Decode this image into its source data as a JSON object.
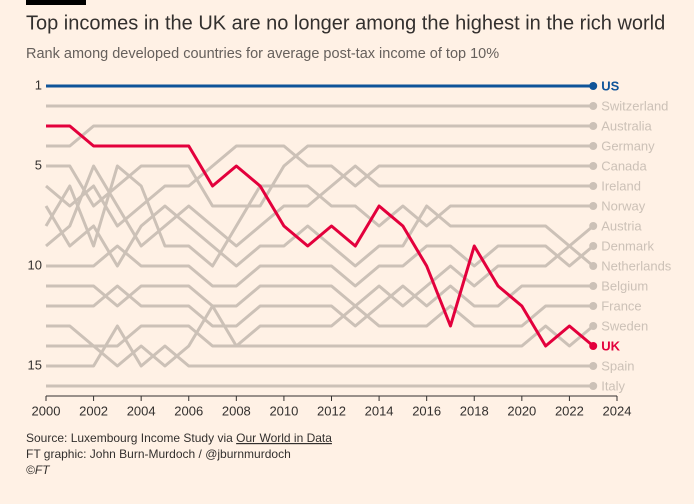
{
  "chart_data": {
    "type": "line",
    "title": "Top incomes in the UK are no longer among the highest in the rich world",
    "subtitle": "Rank among developed countries for average post-tax income of top 10%",
    "x": [
      2000,
      2001,
      2002,
      2003,
      2004,
      2005,
      2006,
      2007,
      2008,
      2009,
      2010,
      2011,
      2012,
      2013,
      2014,
      2015,
      2016,
      2017,
      2018,
      2019,
      2020,
      2021,
      2022,
      2023
    ],
    "xlim": [
      2000,
      2024
    ],
    "xticks": [
      2000,
      2002,
      2004,
      2006,
      2008,
      2010,
      2012,
      2014,
      2016,
      2018,
      2020,
      2022,
      2024
    ],
    "ylim": [
      16.5,
      0.5
    ],
    "yticks": [
      1,
      5,
      10,
      15
    ],
    "series": [
      {
        "name": "Switzerland",
        "color": "#ccc1b7",
        "values": [
          2,
          2,
          2,
          2,
          2,
          2,
          2,
          2,
          2,
          2,
          2,
          2,
          2,
          2,
          2,
          2,
          2,
          2,
          2,
          2,
          2,
          2,
          2,
          2
        ]
      },
      {
        "name": "Australia",
        "color": "#ccc1b7",
        "values": [
          4,
          4,
          3,
          3,
          3,
          3,
          3,
          3,
          3,
          3,
          3,
          3,
          3,
          3,
          3,
          3,
          3,
          3,
          3,
          3,
          3,
          3,
          3,
          3
        ]
      },
      {
        "name": "Germany",
        "color": "#ccc1b7",
        "values": [
          5,
          5,
          7,
          6,
          5,
          5,
          5,
          7,
          7,
          7,
          5,
          4,
          4,
          4,
          4,
          4,
          4,
          4,
          4,
          4,
          4,
          4,
          4,
          4
        ]
      },
      {
        "name": "Canada",
        "color": "#ccc1b7",
        "values": [
          6,
          7,
          6,
          8,
          7,
          6,
          6,
          5,
          4,
          4,
          4,
          5,
          5,
          6,
          5,
          5,
          5,
          5,
          5,
          5,
          5,
          5,
          5,
          5
        ]
      },
      {
        "name": "Ireland",
        "color": "#ccc1b7",
        "values": [
          9,
          8,
          5,
          7,
          9,
          8,
          7,
          8,
          9,
          8,
          7,
          7,
          6,
          5,
          6,
          6,
          6,
          6,
          6,
          6,
          6,
          6,
          6,
          6
        ]
      },
      {
        "name": "Norway",
        "color": "#ccc1b7",
        "values": [
          8,
          6,
          9,
          5,
          6,
          9,
          9,
          10,
          8,
          6,
          6,
          6,
          7,
          7,
          8,
          7,
          8,
          7,
          7,
          7,
          7,
          7,
          7,
          7
        ]
      },
      {
        "name": "Austria",
        "color": "#ccc1b7",
        "values": [
          7,
          9,
          8,
          10,
          8,
          7,
          8,
          9,
          10,
          9,
          9,
          8,
          9,
          10,
          9,
          9,
          7,
          8,
          8,
          8,
          8,
          8,
          9,
          8
        ]
      },
      {
        "name": "Denmark",
        "color": "#ccc1b7",
        "values": [
          10,
          10,
          10,
          9,
          10,
          10,
          10,
          11,
          11,
          10,
          10,
          10,
          10,
          11,
          10,
          10,
          9,
          9,
          10,
          9,
          9,
          9,
          10,
          9
        ]
      },
      {
        "name": "Netherlands",
        "color": "#ccc1b7",
        "values": [
          11,
          11,
          11,
          12,
          11,
          11,
          11,
          12,
          12,
          11,
          11,
          11,
          11,
          12,
          11,
          12,
          11,
          10,
          11,
          10,
          10,
          10,
          9,
          10
        ]
      },
      {
        "name": "Belgium",
        "color": "#ccc1b7",
        "values": [
          12,
          12,
          12,
          11,
          12,
          12,
          12,
          13,
          13,
          12,
          12,
          12,
          12,
          13,
          12,
          11,
          12,
          11,
          12,
          12,
          11,
          11,
          11,
          11
        ]
      },
      {
        "name": "France",
        "color": "#ccc1b7",
        "values": [
          13,
          13,
          14,
          14,
          13,
          13,
          13,
          14,
          14,
          13,
          13,
          13,
          13,
          12,
          13,
          13,
          13,
          12,
          13,
          13,
          13,
          12,
          12,
          12
        ]
      },
      {
        "name": "Sweden",
        "color": "#ccc1b7",
        "values": [
          14,
          14,
          14,
          15,
          14,
          15,
          14,
          12,
          14,
          14,
          14,
          14,
          14,
          14,
          14,
          14,
          14,
          14,
          14,
          14,
          14,
          13,
          14,
          13
        ]
      },
      {
        "name": "Spain",
        "color": "#ccc1b7",
        "values": [
          15,
          15,
          15,
          13,
          15,
          14,
          15,
          15,
          15,
          15,
          15,
          15,
          15,
          15,
          15,
          15,
          15,
          15,
          15,
          15,
          15,
          15,
          15,
          15
        ]
      },
      {
        "name": "Italy",
        "color": "#ccc1b7",
        "values": [
          16,
          16,
          16,
          16,
          16,
          16,
          16,
          16,
          16,
          16,
          16,
          16,
          16,
          16,
          16,
          16,
          16,
          16,
          16,
          16,
          16,
          16,
          16,
          16
        ]
      },
      {
        "name": "US",
        "color": "#0f5499",
        "values": [
          1,
          1,
          1,
          1,
          1,
          1,
          1,
          1,
          1,
          1,
          1,
          1,
          1,
          1,
          1,
          1,
          1,
          1,
          1,
          1,
          1,
          1,
          1,
          1
        ]
      },
      {
        "name": "UK",
        "color": "#e3003c",
        "values": [
          3,
          3,
          4,
          4,
          4,
          4,
          4,
          6,
          5,
          6,
          8,
          9,
          8,
          9,
          7,
          8,
          10,
          13,
          9,
          11,
          12,
          14,
          13,
          14
        ]
      }
    ],
    "source": {
      "prefix": "Source: Luxembourg Income Study via ",
      "link": "Our World in Data"
    },
    "credit": "FT graphic: John Burn-Murdoch / @jburnmurdoch",
    "copyright": "©FT"
  }
}
